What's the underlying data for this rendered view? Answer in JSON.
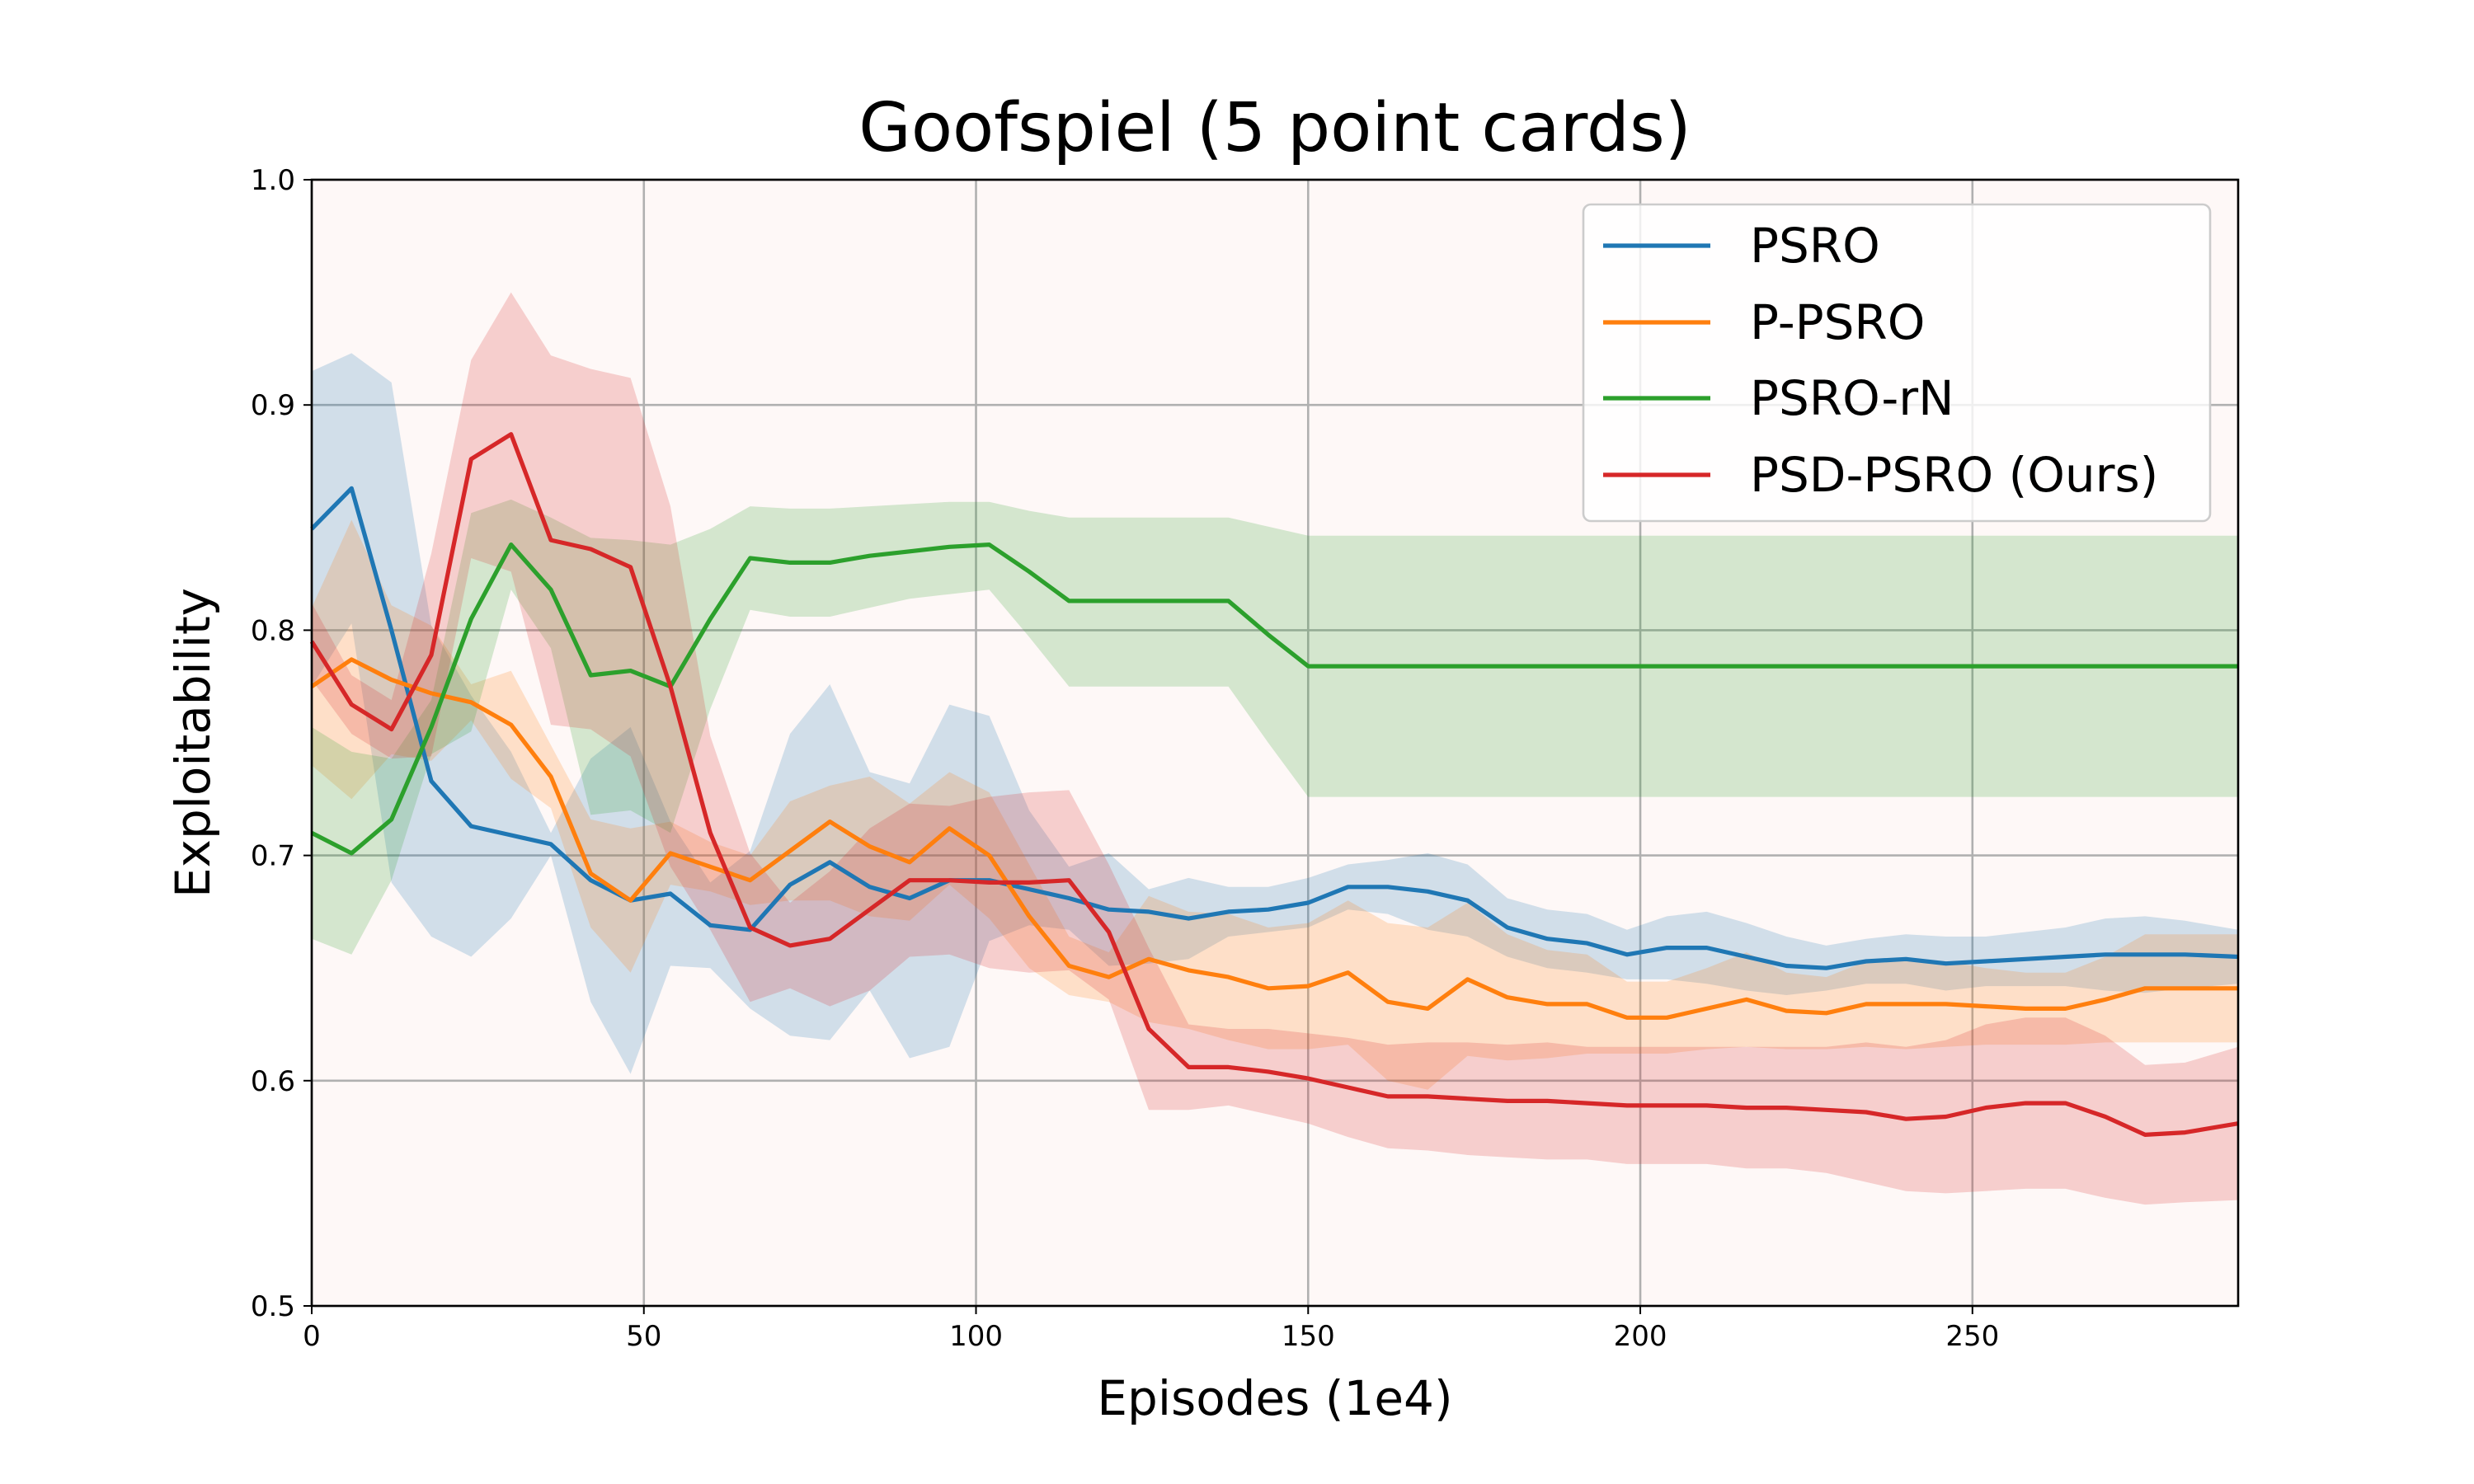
{
  "chart_data": {
    "type": "line",
    "title": "Goofspiel (5 point cards)",
    "xlabel": "Episodes (1e4)",
    "ylabel": "Exploitability",
    "xlim": [
      0,
      290
    ],
    "ylim": [
      0.5,
      1.0
    ],
    "xticks": [
      0,
      50,
      100,
      150,
      200,
      250
    ],
    "yticks": [
      0.5,
      0.6,
      0.7,
      0.8,
      0.9,
      1.0
    ],
    "xtick_labels": [
      "0",
      "50",
      "100",
      "150",
      "200",
      "250"
    ],
    "ytick_labels": [
      "0.5",
      "0.6",
      "0.7",
      "0.8",
      "0.9",
      "1.0"
    ],
    "grid": true,
    "legend_position": "top-right",
    "background": "#fef8f7",
    "series": [
      {
        "name": "PSRO",
        "color": "#1f77b4",
        "x": [
          0,
          6,
          12,
          18,
          24,
          30,
          36,
          42,
          48,
          54,
          60,
          66,
          72,
          78,
          84,
          90,
          96,
          102,
          108,
          114,
          120,
          126,
          132,
          138,
          144,
          150,
          156,
          162,
          168,
          174,
          180,
          186,
          192,
          198,
          204,
          210,
          216,
          222,
          228,
          234,
          240,
          246,
          252,
          258,
          264,
          270,
          276,
          282,
          290
        ],
        "y": [
          0.845,
          0.863,
          0.8,
          0.733,
          0.713,
          0.709,
          0.705,
          0.689,
          0.68,
          0.683,
          0.669,
          0.667,
          0.687,
          0.697,
          0.686,
          0.681,
          0.689,
          0.689,
          0.685,
          0.681,
          0.676,
          0.675,
          0.672,
          0.675,
          0.676,
          0.679,
          0.686,
          0.686,
          0.684,
          0.68,
          0.668,
          0.663,
          0.661,
          0.656,
          0.659,
          0.659,
          0.655,
          0.651,
          0.65,
          0.653,
          0.654,
          0.652,
          0.653,
          0.654,
          0.655,
          0.656,
          0.656,
          0.656,
          0.655
        ],
        "lower": [
          0.775,
          0.803,
          0.688,
          0.664,
          0.655,
          0.672,
          0.7,
          0.635,
          0.603,
          0.651,
          0.65,
          0.632,
          0.62,
          0.618,
          0.64,
          0.61,
          0.615,
          0.662,
          0.669,
          0.667,
          0.651,
          0.652,
          0.654,
          0.664,
          0.666,
          0.668,
          0.676,
          0.674,
          0.667,
          0.664,
          0.655,
          0.65,
          0.648,
          0.645,
          0.645,
          0.643,
          0.64,
          0.638,
          0.64,
          0.643,
          0.643,
          0.64,
          0.642,
          0.642,
          0.642,
          0.64,
          0.639,
          0.641,
          0.643
        ],
        "upper": [
          0.915,
          0.923,
          0.91,
          0.802,
          0.771,
          0.746,
          0.71,
          0.743,
          0.757,
          0.715,
          0.688,
          0.702,
          0.754,
          0.776,
          0.737,
          0.732,
          0.767,
          0.762,
          0.72,
          0.695,
          0.701,
          0.685,
          0.69,
          0.686,
          0.686,
          0.69,
          0.696,
          0.698,
          0.701,
          0.696,
          0.681,
          0.676,
          0.674,
          0.667,
          0.673,
          0.675,
          0.67,
          0.664,
          0.66,
          0.663,
          0.665,
          0.664,
          0.664,
          0.666,
          0.668,
          0.672,
          0.673,
          0.671,
          0.667
        ]
      },
      {
        "name": "P-PSRO",
        "color": "#ff7f0e",
        "x": [
          0,
          6,
          12,
          18,
          24,
          30,
          36,
          42,
          48,
          54,
          60,
          66,
          72,
          78,
          84,
          90,
          96,
          102,
          108,
          114,
          120,
          126,
          132,
          138,
          144,
          150,
          156,
          162,
          168,
          174,
          180,
          186,
          192,
          198,
          204,
          210,
          216,
          222,
          228,
          234,
          240,
          246,
          252,
          258,
          264,
          270,
          276,
          282,
          290
        ],
        "y": [
          0.775,
          0.787,
          0.778,
          0.772,
          0.768,
          0.758,
          0.735,
          0.692,
          0.68,
          0.701,
          0.695,
          0.689,
          0.702,
          0.715,
          0.704,
          0.697,
          0.712,
          0.7,
          0.673,
          0.651,
          0.646,
          0.654,
          0.649,
          0.646,
          0.641,
          0.642,
          0.648,
          0.635,
          0.632,
          0.645,
          0.637,
          0.634,
          0.634,
          0.628,
          0.628,
          0.632,
          0.636,
          0.631,
          0.63,
          0.634,
          0.634,
          0.634,
          0.633,
          0.632,
          0.632,
          0.636,
          0.641,
          0.641,
          0.641
        ],
        "lower": [
          0.74,
          0.725,
          0.745,
          0.742,
          0.76,
          0.734,
          0.721,
          0.668,
          0.648,
          0.687,
          0.684,
          0.678,
          0.68,
          0.68,
          0.673,
          0.671,
          0.687,
          0.672,
          0.65,
          0.638,
          0.635,
          0.626,
          0.623,
          0.618,
          0.614,
          0.614,
          0.616,
          0.6,
          0.596,
          0.611,
          0.609,
          0.61,
          0.612,
          0.612,
          0.612,
          0.614,
          0.615,
          0.614,
          0.614,
          0.615,
          0.614,
          0.615,
          0.616,
          0.616,
          0.616,
          0.617,
          0.617,
          0.617,
          0.617
        ],
        "upper": [
          0.81,
          0.849,
          0.811,
          0.802,
          0.776,
          0.782,
          0.749,
          0.716,
          0.712,
          0.715,
          0.706,
          0.7,
          0.724,
          0.731,
          0.735,
          0.723,
          0.737,
          0.728,
          0.696,
          0.664,
          0.657,
          0.682,
          0.675,
          0.674,
          0.668,
          0.67,
          0.68,
          0.67,
          0.668,
          0.679,
          0.665,
          0.658,
          0.656,
          0.644,
          0.644,
          0.65,
          0.657,
          0.648,
          0.646,
          0.653,
          0.654,
          0.653,
          0.65,
          0.648,
          0.648,
          0.655,
          0.665,
          0.665,
          0.665
        ]
      },
      {
        "name": "PSRO-rN",
        "color": "#2ca02c",
        "x": [
          0,
          6,
          12,
          18,
          24,
          30,
          36,
          42,
          48,
          54,
          60,
          66,
          72,
          78,
          84,
          90,
          96,
          102,
          108,
          114,
          120,
          126,
          132,
          138,
          144,
          150,
          156,
          162,
          168,
          174,
          180,
          186,
          192,
          198,
          204,
          210,
          216,
          222,
          228,
          234,
          240,
          246,
          252,
          258,
          264,
          270,
          276,
          282,
          290
        ],
        "y": [
          0.71,
          0.701,
          0.716,
          0.757,
          0.805,
          0.838,
          0.818,
          0.78,
          0.782,
          0.775,
          0.805,
          0.832,
          0.83,
          0.83,
          0.833,
          0.835,
          0.837,
          0.838,
          0.826,
          0.813,
          0.813,
          0.813,
          0.813,
          0.813,
          0.798,
          0.784,
          0.784,
          0.784,
          0.784,
          0.784,
          0.784,
          0.784,
          0.784,
          0.784,
          0.784,
          0.784,
          0.784,
          0.784,
          0.784,
          0.784,
          0.784,
          0.784,
          0.784,
          0.784,
          0.784,
          0.784,
          0.784,
          0.784,
          0.784
        ],
        "lower": [
          0.663,
          0.656,
          0.689,
          0.745,
          0.755,
          0.818,
          0.792,
          0.718,
          0.72,
          0.71,
          0.765,
          0.809,
          0.806,
          0.806,
          0.81,
          0.814,
          0.816,
          0.818,
          0.797,
          0.775,
          0.775,
          0.775,
          0.775,
          0.775,
          0.75,
          0.726,
          0.726,
          0.726,
          0.726,
          0.726,
          0.726,
          0.726,
          0.726,
          0.726,
          0.726,
          0.726,
          0.726,
          0.726,
          0.726,
          0.726,
          0.726,
          0.726,
          0.726,
          0.726,
          0.726,
          0.726,
          0.726,
          0.726,
          0.726
        ],
        "upper": [
          0.757,
          0.746,
          0.743,
          0.769,
          0.852,
          0.858,
          0.85,
          0.841,
          0.84,
          0.838,
          0.845,
          0.855,
          0.854,
          0.854,
          0.855,
          0.856,
          0.857,
          0.857,
          0.853,
          0.85,
          0.85,
          0.85,
          0.85,
          0.85,
          0.846,
          0.842,
          0.842,
          0.842,
          0.842,
          0.842,
          0.842,
          0.842,
          0.842,
          0.842,
          0.842,
          0.842,
          0.842,
          0.842,
          0.842,
          0.842,
          0.842,
          0.842,
          0.842,
          0.842,
          0.842,
          0.842,
          0.842,
          0.842,
          0.842
        ]
      },
      {
        "name": "PSD-PSRO (Ours)",
        "color": "#d62728",
        "x": [
          0,
          6,
          12,
          18,
          24,
          30,
          36,
          42,
          48,
          54,
          60,
          66,
          72,
          78,
          84,
          90,
          96,
          102,
          108,
          114,
          120,
          126,
          132,
          138,
          144,
          150,
          156,
          162,
          168,
          174,
          180,
          186,
          192,
          198,
          204,
          210,
          216,
          222,
          228,
          234,
          240,
          246,
          252,
          258,
          264,
          270,
          276,
          282,
          290
        ],
        "y": [
          0.795,
          0.767,
          0.756,
          0.789,
          0.876,
          0.887,
          0.84,
          0.836,
          0.828,
          0.775,
          0.71,
          0.668,
          0.66,
          0.663,
          0.676,
          0.689,
          0.689,
          0.688,
          0.688,
          0.689,
          0.666,
          0.623,
          0.606,
          0.606,
          0.604,
          0.601,
          0.597,
          0.593,
          0.593,
          0.592,
          0.591,
          0.591,
          0.59,
          0.589,
          0.589,
          0.589,
          0.588,
          0.588,
          0.587,
          0.586,
          0.583,
          0.584,
          0.588,
          0.59,
          0.59,
          0.584,
          0.576,
          0.577,
          0.581
        ],
        "lower": [
          0.778,
          0.754,
          0.743,
          0.744,
          0.832,
          0.826,
          0.758,
          0.756,
          0.744,
          0.695,
          0.667,
          0.635,
          0.641,
          0.633,
          0.64,
          0.655,
          0.656,
          0.65,
          0.648,
          0.649,
          0.636,
          0.587,
          0.587,
          0.589,
          0.585,
          0.581,
          0.575,
          0.57,
          0.569,
          0.567,
          0.566,
          0.565,
          0.565,
          0.563,
          0.563,
          0.563,
          0.561,
          0.561,
          0.559,
          0.555,
          0.551,
          0.55,
          0.551,
          0.552,
          0.552,
          0.548,
          0.545,
          0.546,
          0.547
        ],
        "upper": [
          0.812,
          0.78,
          0.769,
          0.834,
          0.92,
          0.95,
          0.922,
          0.916,
          0.912,
          0.855,
          0.753,
          0.701,
          0.679,
          0.693,
          0.712,
          0.723,
          0.722,
          0.726,
          0.728,
          0.729,
          0.696,
          0.659,
          0.625,
          0.623,
          0.623,
          0.621,
          0.619,
          0.616,
          0.617,
          0.617,
          0.616,
          0.617,
          0.615,
          0.615,
          0.615,
          0.615,
          0.615,
          0.615,
          0.615,
          0.617,
          0.615,
          0.618,
          0.625,
          0.628,
          0.628,
          0.62,
          0.607,
          0.608,
          0.615
        ]
      }
    ]
  }
}
